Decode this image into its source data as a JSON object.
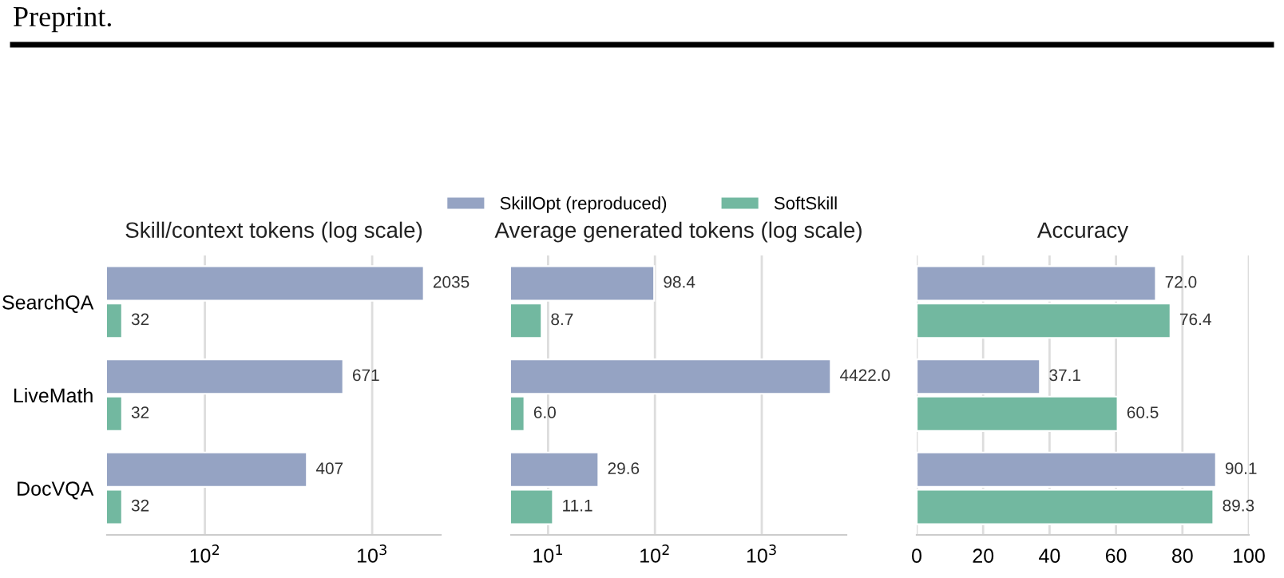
{
  "chart_data": [
    {
      "type": "bar",
      "orientation": "horizontal",
      "title": "Skill/context tokens (log scale)",
      "annotations": [
        "Preprint."
      ],
      "categories": [
        "SearchQA",
        "LiveMath",
        "DocVQA"
      ],
      "log": "x",
      "xlim": [
        26,
        2570
      ],
      "xticks": [
        {
          "value": 100,
          "label": "10$^{2}$"
        },
        {
          "value": 1000,
          "label": "10$^{3}$"
        }
      ],
      "grid": "x",
      "tick_labels": "xy",
      "series": [
        {
          "color": "#95a3c3",
          "values": [
            2035,
            671,
            407
          ],
          "value_labels": [
            "2035",
            "671",
            "407"
          ]
        },
        {
          "color": "#72b8a0",
          "values": [
            32,
            32,
            32
          ],
          "value_labels": [
            "32",
            "32",
            "32"
          ]
        }
      ]
    },
    {
      "type": "bar",
      "orientation": "horizontal",
      "title": "Average generated tokens (log scale)",
      "log": "x",
      "xlim": [
        4.5,
        6200
      ],
      "xticks": [
        {
          "value": 10,
          "label": "10$^{1}$"
        },
        {
          "value": 100,
          "label": "10$^{2}$"
        },
        {
          "value": 1000,
          "label": "10$^{3}$"
        }
      ],
      "grid": "x",
      "tick_labels": "x",
      "legend": "top",
      "series": [
        {
          "name": "SkillOpt (reproduced)",
          "color": "#95a3c3",
          "values": [
            98.4,
            4422.0,
            29.6
          ],
          "value_labels": [
            "98.4",
            "4422.0",
            "29.6"
          ]
        },
        {
          "name": "SoftSkill",
          "color": "#72b8a0",
          "values": [
            8.7,
            6.0,
            11.1
          ],
          "value_labels": [
            "8.7",
            "6.0",
            "11.1"
          ]
        }
      ]
    },
    {
      "type": "bar",
      "orientation": "horizontal",
      "title": "Accuracy",
      "xlim": [
        0,
        100
      ],
      "xticks": [
        0,
        20,
        40,
        60,
        80,
        100
      ],
      "grid": "x",
      "tick_labels": "x",
      "series": [
        {
          "color": "#95a3c3",
          "values": [
            72.0,
            37.1,
            90.1
          ],
          "value_labels": [
            "72.0",
            "37.1",
            "90.1"
          ]
        },
        {
          "color": "#72b8a0",
          "values": [
            76.4,
            60.5,
            89.3
          ],
          "value_labels": [
            "76.4",
            "60.5",
            "89.3"
          ]
        }
      ]
    }
  ]
}
